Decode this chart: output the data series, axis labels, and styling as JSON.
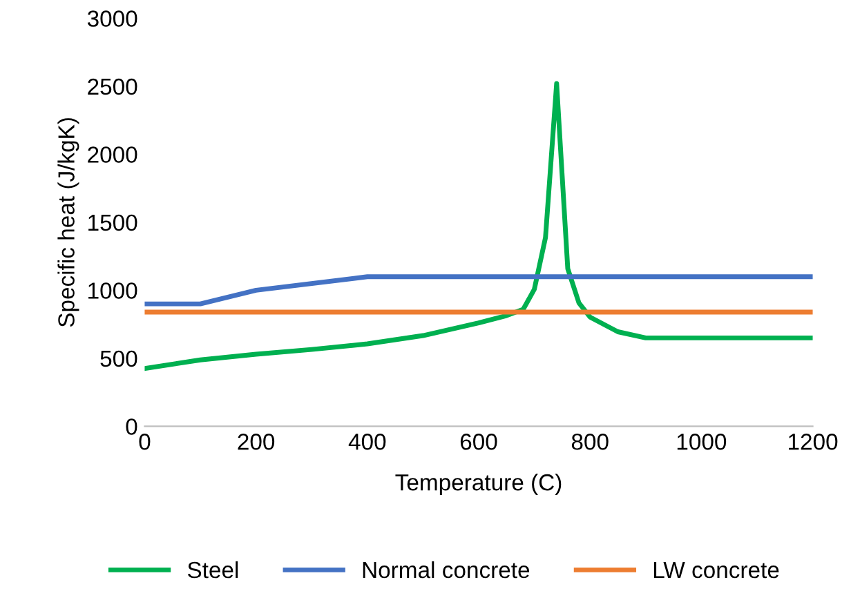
{
  "chart_data": {
    "type": "line",
    "xlabel": "Temperature (C)",
    "ylabel": "Specific heat (J/kgK)",
    "xlim": [
      0,
      1200
    ],
    "xticks": [
      0,
      200,
      400,
      600,
      800,
      1000,
      1200
    ],
    "ylim": [
      0,
      3000
    ],
    "yticks": [
      0,
      500,
      1000,
      1500,
      2000,
      2500,
      3000
    ],
    "grid": false,
    "legend": "bottom",
    "marker": "none",
    "line_style": "solid",
    "series": [
      {
        "name": "Steel",
        "color": "#00b050",
        "x": [
          0,
          100,
          200,
          300,
          400,
          500,
          600,
          650,
          680,
          700,
          720,
          740,
          760,
          780,
          800,
          850,
          900,
          1200
        ],
        "values": [
          425,
          488,
          530,
          565,
          606,
          667,
          760,
          814,
          860,
          1008,
          1388,
          2520,
          1159,
          908,
          803,
          695,
          650,
          650
        ]
      },
      {
        "name": "Normal concrete",
        "color": "#4472c4",
        "x": [
          0,
          100,
          200,
          400,
          1200
        ],
        "values": [
          900,
          900,
          1000,
          1100,
          1100
        ]
      },
      {
        "name": "LW concrete",
        "color": "#ed7d31",
        "x": [
          0,
          1200
        ],
        "values": [
          840,
          840
        ]
      }
    ]
  }
}
